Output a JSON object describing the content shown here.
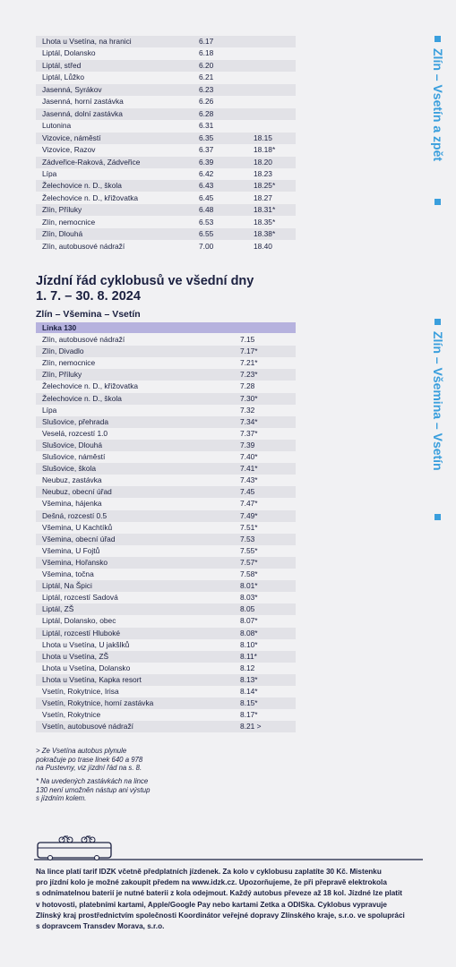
{
  "top_table": {
    "rows": [
      [
        "Lhota u Vsetína, na hranici",
        "6.17"
      ],
      [
        "Liptál, Dolansko",
        "6.18"
      ],
      [
        "Liptál, střed",
        "6.20"
      ],
      [
        "Liptál, Lůžko",
        "6.21"
      ],
      [
        "Jasenná, Syrákov",
        "6.23"
      ],
      [
        "Jasenná, horní zastávka",
        "6.26"
      ],
      [
        "Jasenná, dolní zastávka",
        "6.28"
      ],
      [
        "Lutonina",
        "6.31"
      ],
      [
        "Vizovice, náměstí",
        "6.35",
        "18.15"
      ],
      [
        "Vizovice, Razov",
        "6.37",
        "18.18*"
      ],
      [
        "Zádveřice-Raková, Zádveřice",
        "6.39",
        "18.20"
      ],
      [
        "Lípa",
        "6.42",
        "18.23"
      ],
      [
        "Želechovice n. D., škola",
        "6.43",
        "18.25*"
      ],
      [
        "Želechovice n. D., křižovatka",
        "6.45",
        "18.27"
      ],
      [
        "Zlín, Příluky",
        "6.48",
        "18.31*"
      ],
      [
        "Zlín, nemocnice",
        "6.53",
        "18.35*"
      ],
      [
        "Zlín, Dlouhá",
        "6.55",
        "18.38*"
      ],
      [
        "Zlín, autobusové nádraží",
        "7.00",
        "18.40"
      ]
    ]
  },
  "section": {
    "title_lines": [
      "Jízdní řád cyklobusů ve všední dny",
      "1. 7. – 30. 8. 2024"
    ],
    "route": "Zlín – Všemina – Vsetín",
    "line": "Linka 130"
  },
  "bottom_table": {
    "rows": [
      [
        "Zlín, autobusové nádraží",
        "7.15"
      ],
      [
        "Zlín, Divadlo",
        "7.17*"
      ],
      [
        "Zlín, nemocnice",
        "7.21*"
      ],
      [
        "Zlín, Příluky",
        "7.23*"
      ],
      [
        "Želechovice n. D., křižovatka",
        "7.28"
      ],
      [
        "Želechovice n. D., škola",
        "7.30*"
      ],
      [
        "Lípa",
        "7.32"
      ],
      [
        "Slušovice, přehrada",
        "7.34*"
      ],
      [
        "Veselá, rozcestí 1.0",
        "7.37*"
      ],
      [
        "Slušovice, Dlouhá",
        "7.39"
      ],
      [
        "Slušovice, náměstí",
        "7.40*"
      ],
      [
        "Slušovice, škola",
        "7.41*"
      ],
      [
        "Neubuz, zastávka",
        "7.43*"
      ],
      [
        "Neubuz, obecní úřad",
        "7.45"
      ],
      [
        "Všemina, hájenka",
        "7.47*"
      ],
      [
        "Dešná, rozcestí 0.5",
        "7.49*"
      ],
      [
        "Všemina, U Kachtíků",
        "7.51*"
      ],
      [
        "Všemina, obecní úřad",
        "7.53"
      ],
      [
        "Všemina, U Fojtů",
        "7.55*"
      ],
      [
        "Všemina, Hořansko",
        "7.57*"
      ],
      [
        "Všemina, točna",
        "7.58*"
      ],
      [
        "Liptál, Na Špici",
        "8.01*"
      ],
      [
        "Liptál, rozcestí Sadová",
        "8.03*"
      ],
      [
        "Liptál, ZŠ",
        "8.05"
      ],
      [
        "Liptál, Dolansko, obec",
        "8.07*"
      ],
      [
        "Liptál, rozcestí Hluboké",
        "8.08*"
      ],
      [
        "Lhota u Vsetína, U jakšlků",
        "8.10*"
      ],
      [
        "Lhota u Vsetína, ZŠ",
        "8.11*"
      ],
      [
        "Lhota u Vsetína, Dolansko",
        "8.12"
      ],
      [
        "Lhota u Vsetína, Kapka resort",
        "8.13*"
      ],
      [
        "Vsetín, Rokytnice, Irisa",
        "8.14*"
      ],
      [
        "Vsetín, Rokytnice, horní zastávka",
        "8.15*"
      ],
      [
        "Vsetín, Rokytnice",
        "8.17*"
      ],
      [
        "Vsetín, autobusové nádraží",
        "8.21 >"
      ]
    ]
  },
  "notes": [
    [
      "> Ze Vsetína autobus plynule",
      "pokračuje po trase linek 640 a 978",
      "na Pustevny, viz jízdní řád na s. 8."
    ],
    [
      "* Na uvedených zastávkách na lince",
      "130 není umožněn nástup ani výstup",
      "s jízdním kolem."
    ]
  ],
  "footer_lines": [
    "Na lince platí tarif IDZK včetně předplatních jízdenek. Za kolo v cyklobusu zaplatíte 30 Kč. Mistenku",
    "pro jízdní kolo je možné zakoupit předem na www.idzk.cz. Upozorňujeme, že při přepravě elektrokola",
    "s odnímatelnou baterií je nutné baterii z kola odejmout. Každý autobus převeze až 18 kol. Jízdné lze platit",
    "v hotovosti, platebními kartami, Apple/Google Pay nebo kartami Zetka a ODISka. Cyklobus vypravuje",
    "Zlínský kraj prostřednictvím společnosti Koordinátor veřejné dopravy Zlínského kraje, s.r.o. ve spolupráci",
    "s dopravcem Transdev Morava, s.r.o."
  ],
  "side_labels": [
    "Zlín – Vsetín a zpět",
    "Zlín – Všemina – Vsetín"
  ]
}
